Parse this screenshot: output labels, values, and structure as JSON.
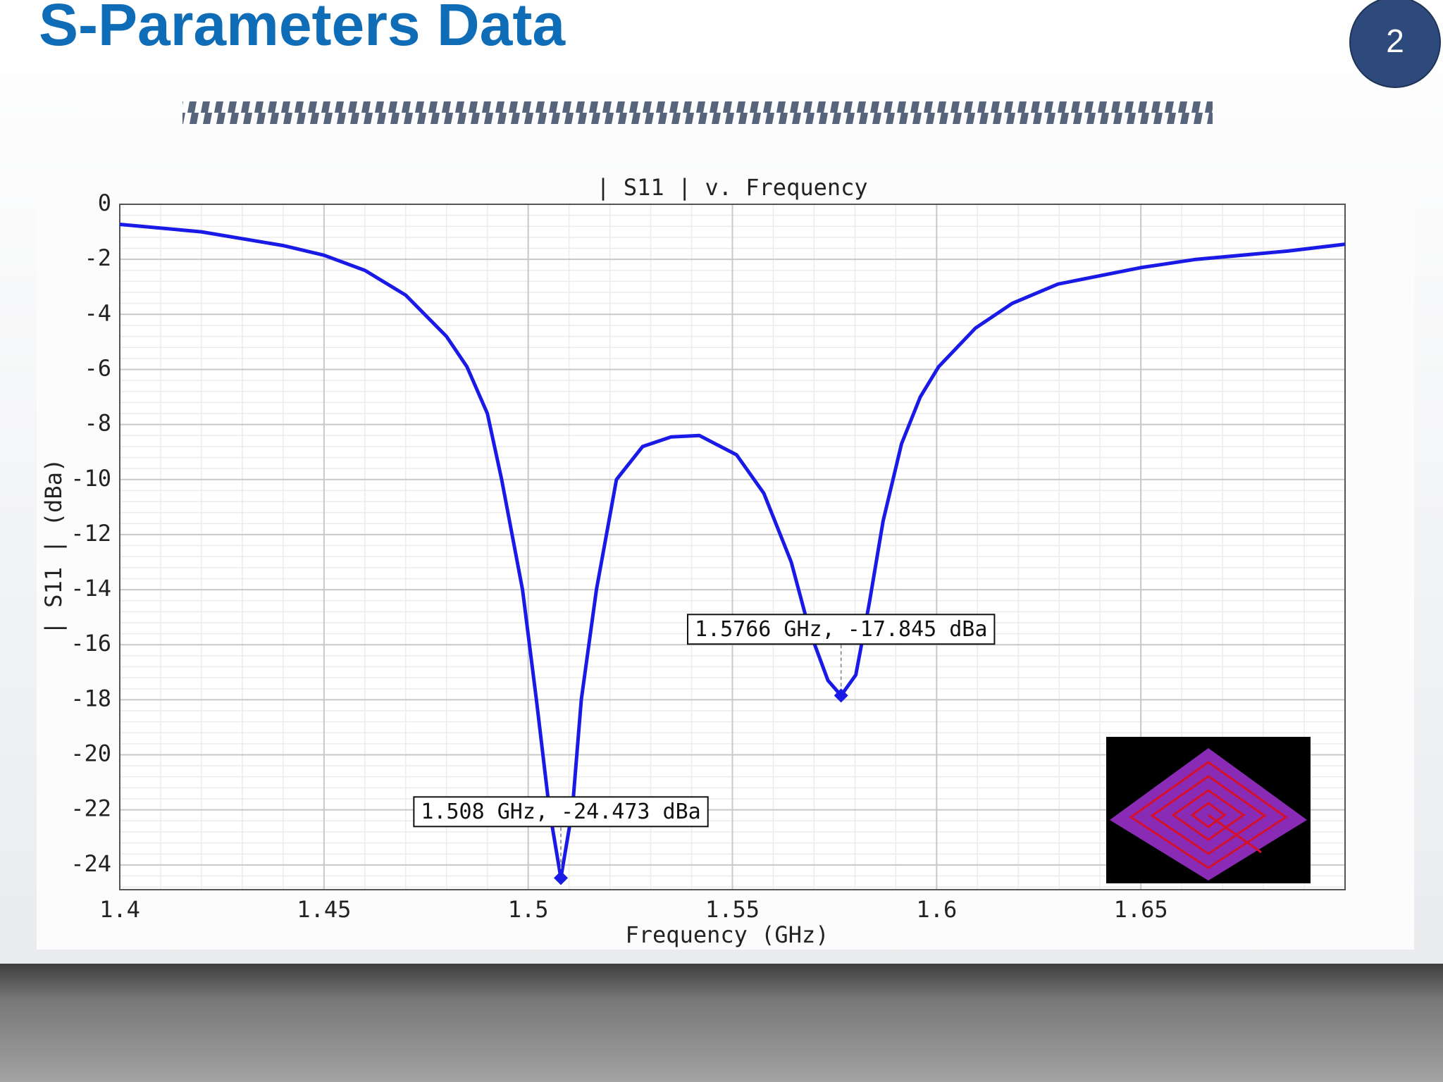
{
  "slide": {
    "title": "S-Parameters Data",
    "page_number": 2
  },
  "chart_data": {
    "type": "line",
    "title": "| S11 | v. Frequency",
    "x_label": "Frequency (GHz)",
    "y_label": "| S11 | (dBa)",
    "x": [
      1.4,
      1.42,
      1.44,
      1.45,
      1.46,
      1.47,
      1.48,
      1.485,
      1.49,
      1.4935,
      1.4986,
      1.502,
      1.5052,
      1.508,
      1.5108,
      1.513,
      1.5167,
      1.5216,
      1.528,
      1.535,
      1.5419,
      1.551,
      1.5577,
      1.5644,
      1.5689,
      1.5734,
      1.5766,
      1.5802,
      1.5835,
      1.5869,
      1.5914,
      1.596,
      1.6005,
      1.6095,
      1.6185,
      1.6297,
      1.65,
      1.6635,
      1.686,
      1.7
    ],
    "values": [
      -0.73,
      -1.0,
      -1.5,
      -1.85,
      -2.4,
      -3.3,
      -4.8,
      -5.9,
      -7.6,
      -10,
      -14,
      -18,
      -22,
      -24.473,
      -22,
      -18,
      -14,
      -10,
      -8.8,
      -8.45,
      -8.4,
      -9.1,
      -10.5,
      -13,
      -15.5,
      -17.3,
      -17.845,
      -17.1,
      -14.5,
      -11.5,
      -8.7,
      -7.0,
      -5.9,
      -4.5,
      -3.6,
      -2.9,
      -2.3,
      -2.0,
      -1.7,
      -1.45
    ],
    "color": "#1a1ae6",
    "markers": [
      {
        "x": 1.508,
        "y": -24.473,
        "label": "1.508 GHz, -24.473 dBa"
      },
      {
        "x": 1.5766,
        "y": -17.845,
        "label": "1.5766 GHz, -17.845 dBa"
      }
    ],
    "xlim": [
      1.4,
      1.7
    ],
    "ylim": [
      -24.9,
      0
    ],
    "xticks": [
      1.4,
      1.45,
      1.5,
      1.55,
      1.6,
      1.65
    ],
    "yticks": [
      0,
      -2,
      -4,
      -6,
      -8,
      -10,
      -12,
      -14,
      -16,
      -18,
      -20,
      -22,
      -24
    ],
    "grid": true
  }
}
